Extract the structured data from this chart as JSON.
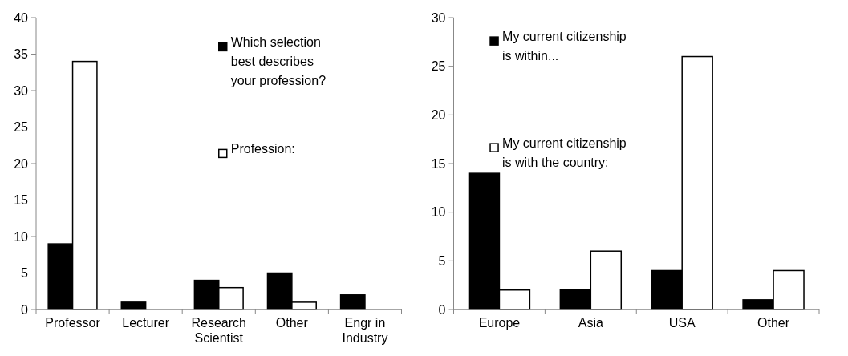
{
  "chart_data": [
    {
      "type": "bar",
      "categories": [
        "Professor",
        "Lecturer",
        "Research Scientist",
        "Other",
        "Engr in Industry"
      ],
      "series": [
        {
          "name": "Which selection best describes your profession?",
          "color": "#000000",
          "values": [
            9,
            1,
            4,
            5,
            2
          ]
        },
        {
          "name": "Profession:",
          "color": "#ffffff",
          "values": [
            34,
            0,
            3,
            1,
            0
          ]
        }
      ],
      "ylim": [
        0,
        40
      ],
      "yticks": [
        0,
        5,
        10,
        15,
        20,
        25,
        30,
        35,
        40
      ],
      "legend": "top right"
    },
    {
      "type": "bar",
      "categories": [
        "Europe",
        "Asia",
        "USA",
        "Other"
      ],
      "series": [
        {
          "name": "My current citizenship is within...",
          "color": "#000000",
          "values": [
            14,
            2,
            4,
            1
          ]
        },
        {
          "name": "My current citizenship is with the country:",
          "color": "#ffffff",
          "values": [
            2,
            6,
            26,
            4
          ]
        }
      ],
      "ylim": [
        0,
        30
      ],
      "yticks": [
        0,
        5,
        10,
        15,
        20,
        25,
        30
      ],
      "legend": "top left"
    }
  ]
}
